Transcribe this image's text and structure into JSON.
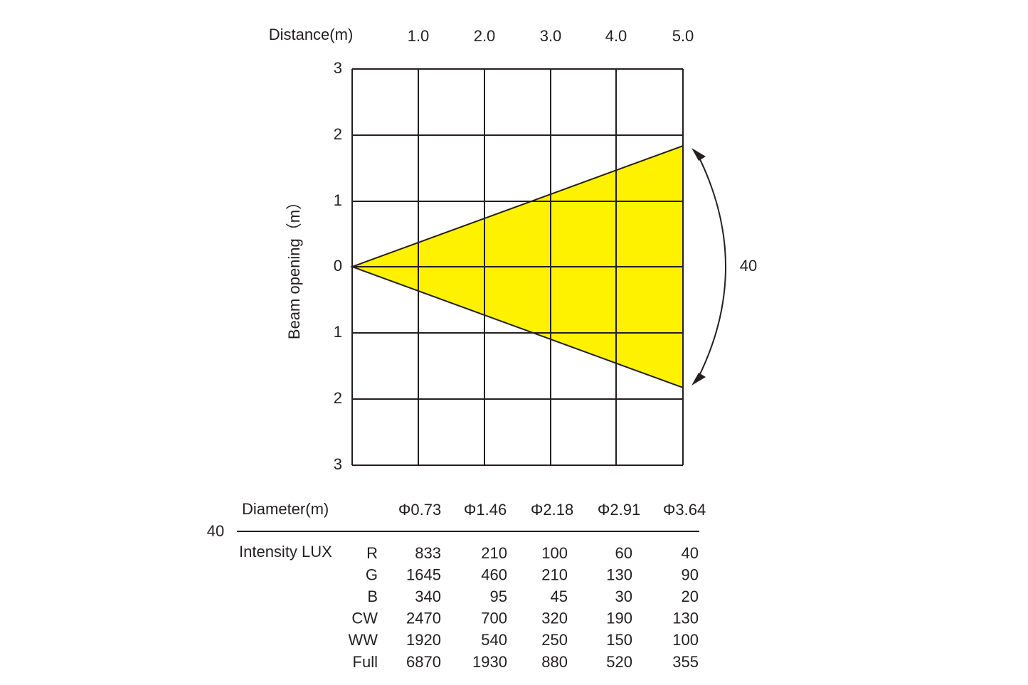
{
  "header": {
    "distance_label": "Distance(m)",
    "distances": [
      "1.0",
      "2.0",
      "3.0",
      "4.0",
      "5.0"
    ]
  },
  "y_axis": {
    "title": "Beam opening（m）",
    "ticks": [
      "3",
      "2",
      "1",
      "0",
      "1",
      "2",
      "3"
    ]
  },
  "beam_angle": "40",
  "table": {
    "diameter_label": "Diameter(m)",
    "diameters": [
      "Φ0.73",
      "Φ1.46",
      "Φ2.18",
      "Φ2.91",
      "Φ3.64"
    ],
    "angle": "40",
    "intensity_label": "Intensity LUX",
    "rows": [
      {
        "label": "R",
        "values": [
          "833",
          "210",
          "100",
          "60",
          "40"
        ]
      },
      {
        "label": "G",
        "values": [
          "1645",
          "460",
          "210",
          "130",
          "90"
        ]
      },
      {
        "label": "B",
        "values": [
          "340",
          "95",
          "45",
          "30",
          "20"
        ]
      },
      {
        "label": "CW",
        "values": [
          "2470",
          "700",
          "320",
          "190",
          "130"
        ]
      },
      {
        "label": "WW",
        "values": [
          "1920",
          "540",
          "250",
          "150",
          "100"
        ]
      },
      {
        "label": "Full",
        "values": [
          "6870",
          "1930",
          "880",
          "520",
          "355"
        ]
      }
    ]
  }
}
